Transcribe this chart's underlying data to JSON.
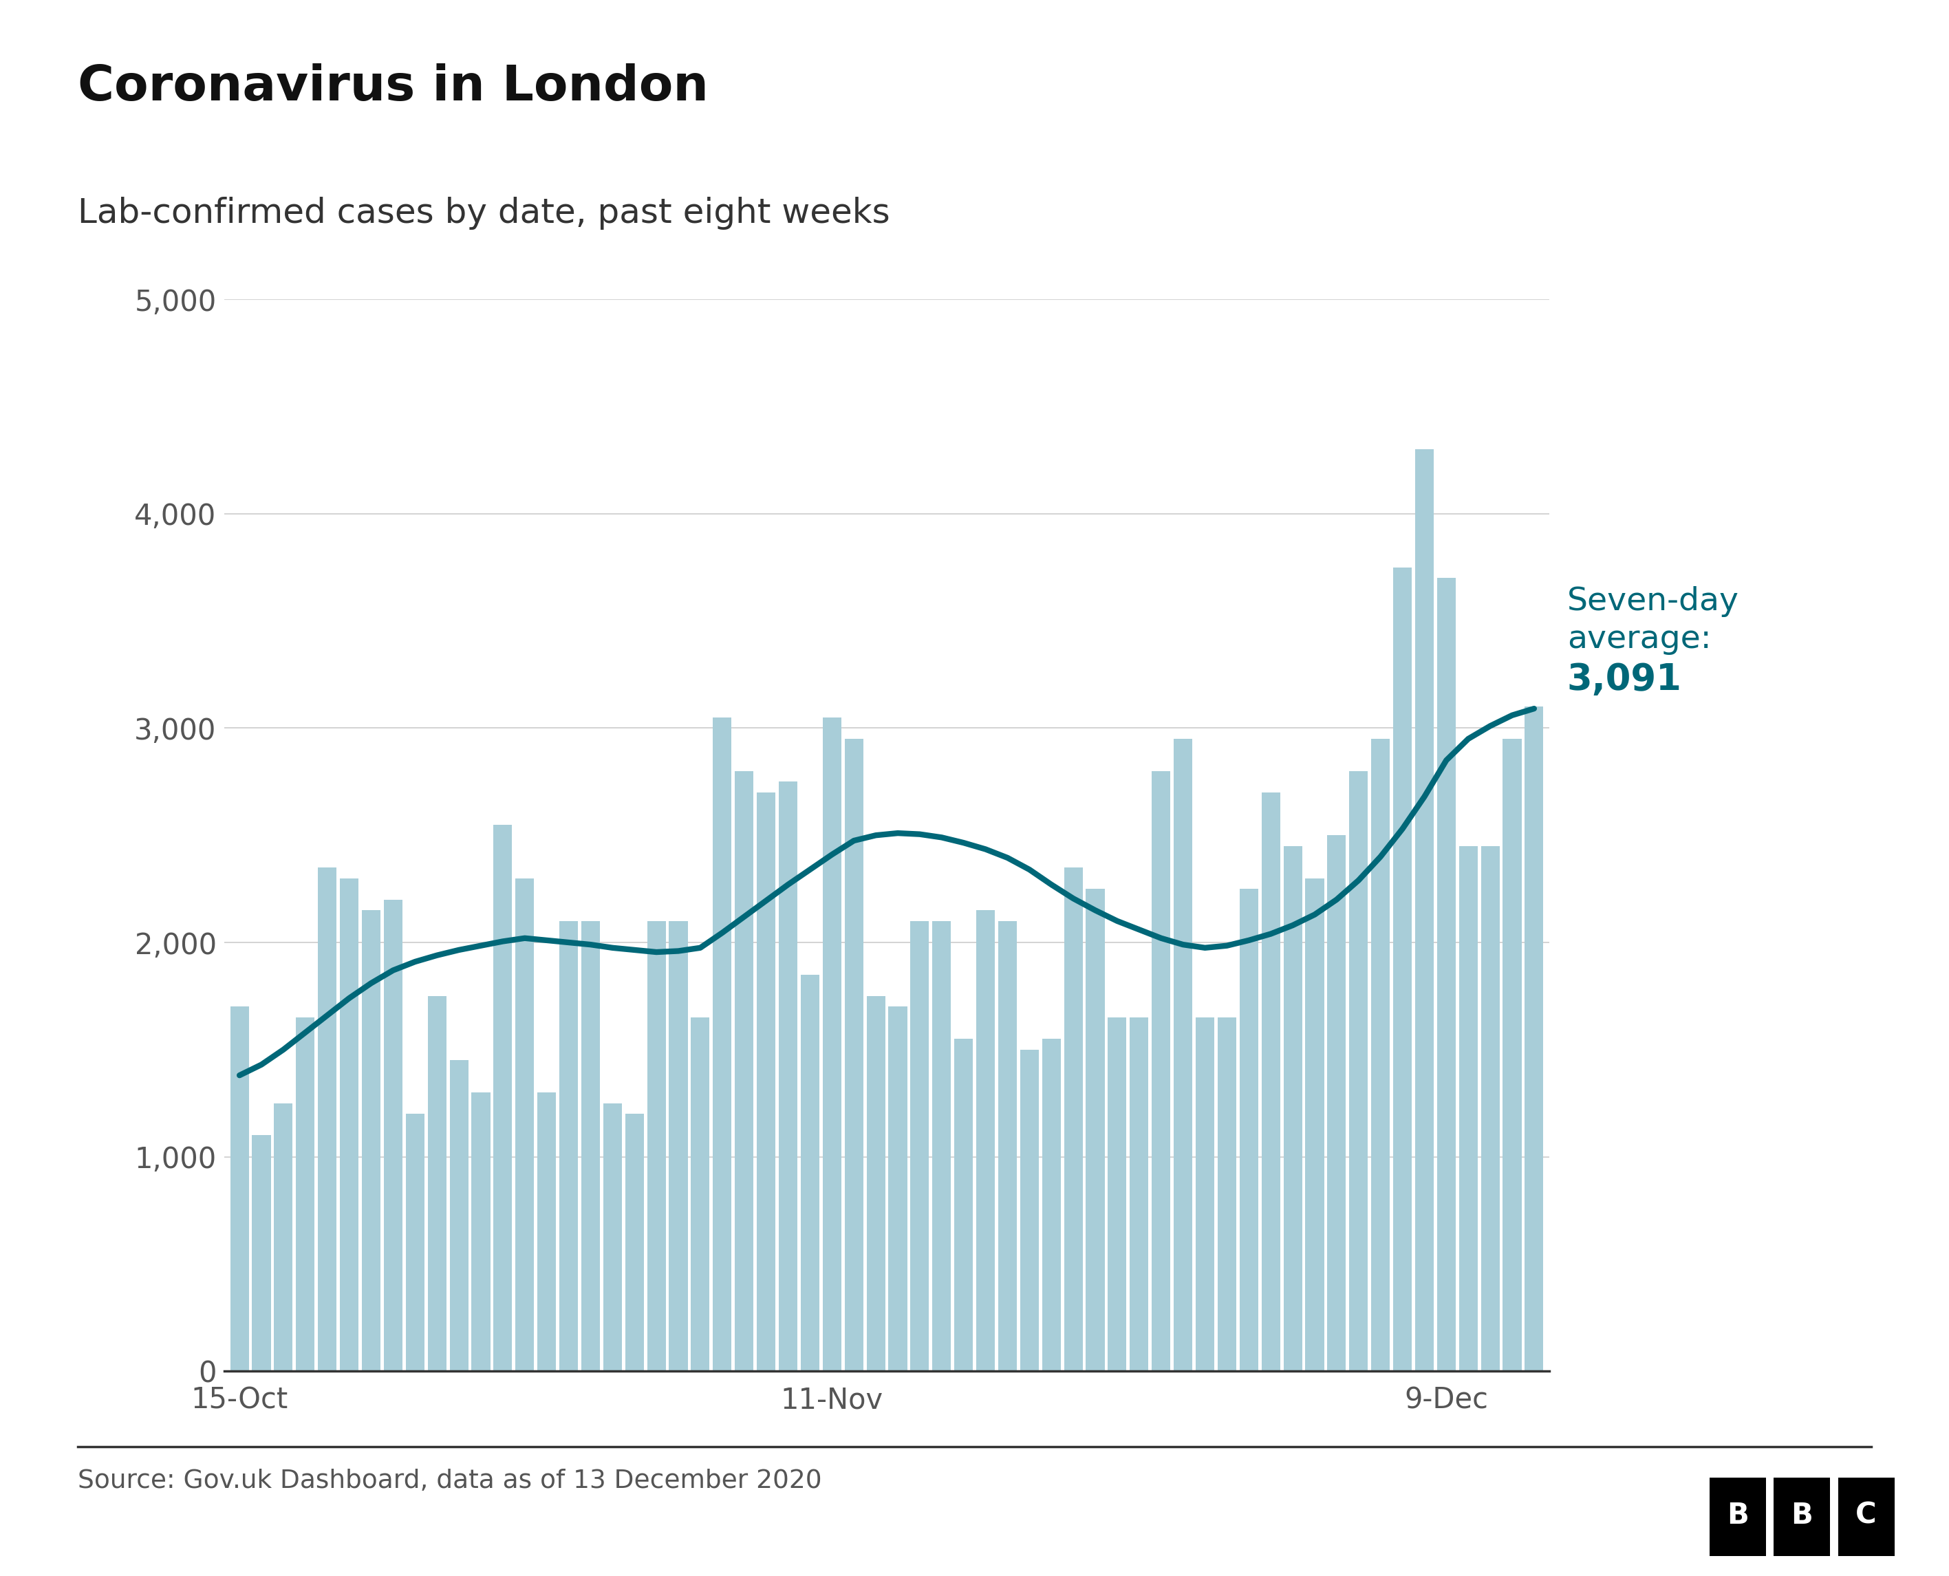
{
  "title": "Coronavirus in London",
  "subtitle": "Lab-confirmed cases by date, past eight weeks",
  "source": "Source: Gov.uk Dashboard, data as of 13 December 2020",
  "bar_color": "#a8cdd8",
  "line_color": "#006778",
  "annotation_color": "#006778",
  "annotation_line1": "Seven-day",
  "annotation_line2": "average:",
  "annotation_line3": "3,091",
  "ylim": [
    0,
    5000
  ],
  "yticks": [
    0,
    1000,
    2000,
    3000,
    4000,
    5000
  ],
  "xtick_labels": [
    "15-Oct",
    "11-Nov",
    "9-Dec"
  ],
  "xtick_positions": [
    0,
    27,
    55
  ],
  "background_color": "#ffffff",
  "title_fontsize": 52,
  "subtitle_fontsize": 36,
  "source_fontsize": 27,
  "tick_fontsize": 30,
  "annotation_fontsize": 34,
  "bar_values": [
    1700,
    1100,
    1250,
    1650,
    2350,
    2300,
    2150,
    2200,
    1200,
    1750,
    1450,
    1300,
    2550,
    2300,
    1300,
    2100,
    2100,
    1250,
    1200,
    2100,
    2100,
    1650,
    3050,
    2800,
    2700,
    2750,
    1850,
    3050,
    2950,
    1750,
    1700,
    2100,
    2100,
    1550,
    2150,
    2100,
    1500,
    1550,
    2350,
    2250,
    1650,
    1650,
    2800,
    2950,
    1650,
    1650,
    2250,
    2700,
    2450,
    2300,
    2500,
    2800,
    2950,
    3750,
    4300,
    3700,
    2450,
    2450,
    2950,
    3100
  ],
  "avg_values": [
    1380,
    1430,
    1500,
    1580,
    1660,
    1740,
    1810,
    1870,
    1910,
    1940,
    1965,
    1985,
    2005,
    2020,
    2010,
    2000,
    1990,
    1975,
    1965,
    1955,
    1960,
    1975,
    2045,
    2120,
    2195,
    2270,
    2340,
    2410,
    2475,
    2500,
    2510,
    2505,
    2490,
    2465,
    2435,
    2395,
    2340,
    2270,
    2205,
    2150,
    2100,
    2060,
    2020,
    1990,
    1975,
    1985,
    2010,
    2040,
    2080,
    2130,
    2200,
    2290,
    2400,
    2530,
    2680,
    2850,
    2950,
    3010,
    3060,
    3091
  ]
}
